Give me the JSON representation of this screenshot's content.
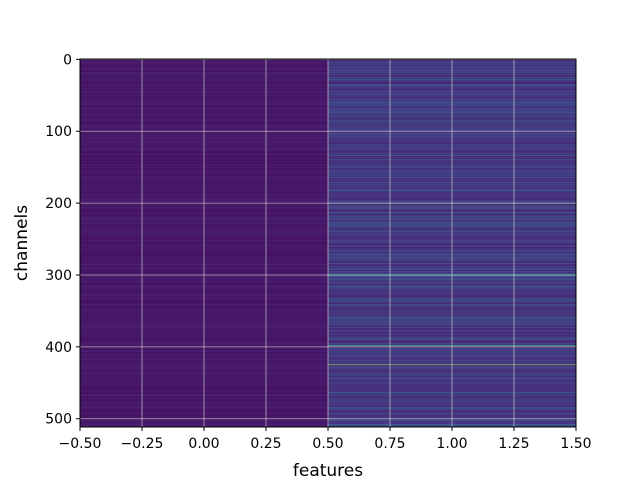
{
  "chart_data": {
    "type": "heatmap",
    "title": "",
    "xlabel": "features",
    "ylabel": "channels",
    "colormap": "viridis",
    "grid": true,
    "n_rows": 512,
    "n_columns": 2,
    "xlim": [
      -0.5,
      1.5
    ],
    "ylim": [
      511.5,
      -0.5
    ],
    "xticks": [
      -0.5,
      -0.25,
      0.0,
      0.25,
      0.5,
      0.75,
      1.0,
      1.25,
      1.5
    ],
    "xtick_labels": [
      "−0.50",
      "−0.25",
      "0.00",
      "0.25",
      "0.50",
      "0.75",
      "1.00",
      "1.25",
      "1.50"
    ],
    "yticks": [
      0,
      100,
      200,
      300,
      400,
      500
    ],
    "ytick_labels": [
      "0",
      "100",
      "200",
      "300",
      "400",
      "500"
    ],
    "column_0_level": 0.05,
    "column_1_base_level": 0.12,
    "column_1_bright_rows": [
      {
        "row": 28,
        "level": 0.35
      },
      {
        "row": 74,
        "level": 0.3
      },
      {
        "row": 134,
        "level": 0.45
      },
      {
        "row": 204,
        "level": 0.4
      },
      {
        "row": 301,
        "level": 0.62
      },
      {
        "row": 337,
        "level": 0.42
      },
      {
        "row": 359,
        "level": 0.4
      },
      {
        "row": 398,
        "level": 0.75
      },
      {
        "row": 425,
        "level": 0.85
      },
      {
        "row": 464,
        "level": 0.35
      },
      {
        "row": 492,
        "level": 0.3
      },
      {
        "row": 508,
        "level": 0.45
      }
    ]
  }
}
